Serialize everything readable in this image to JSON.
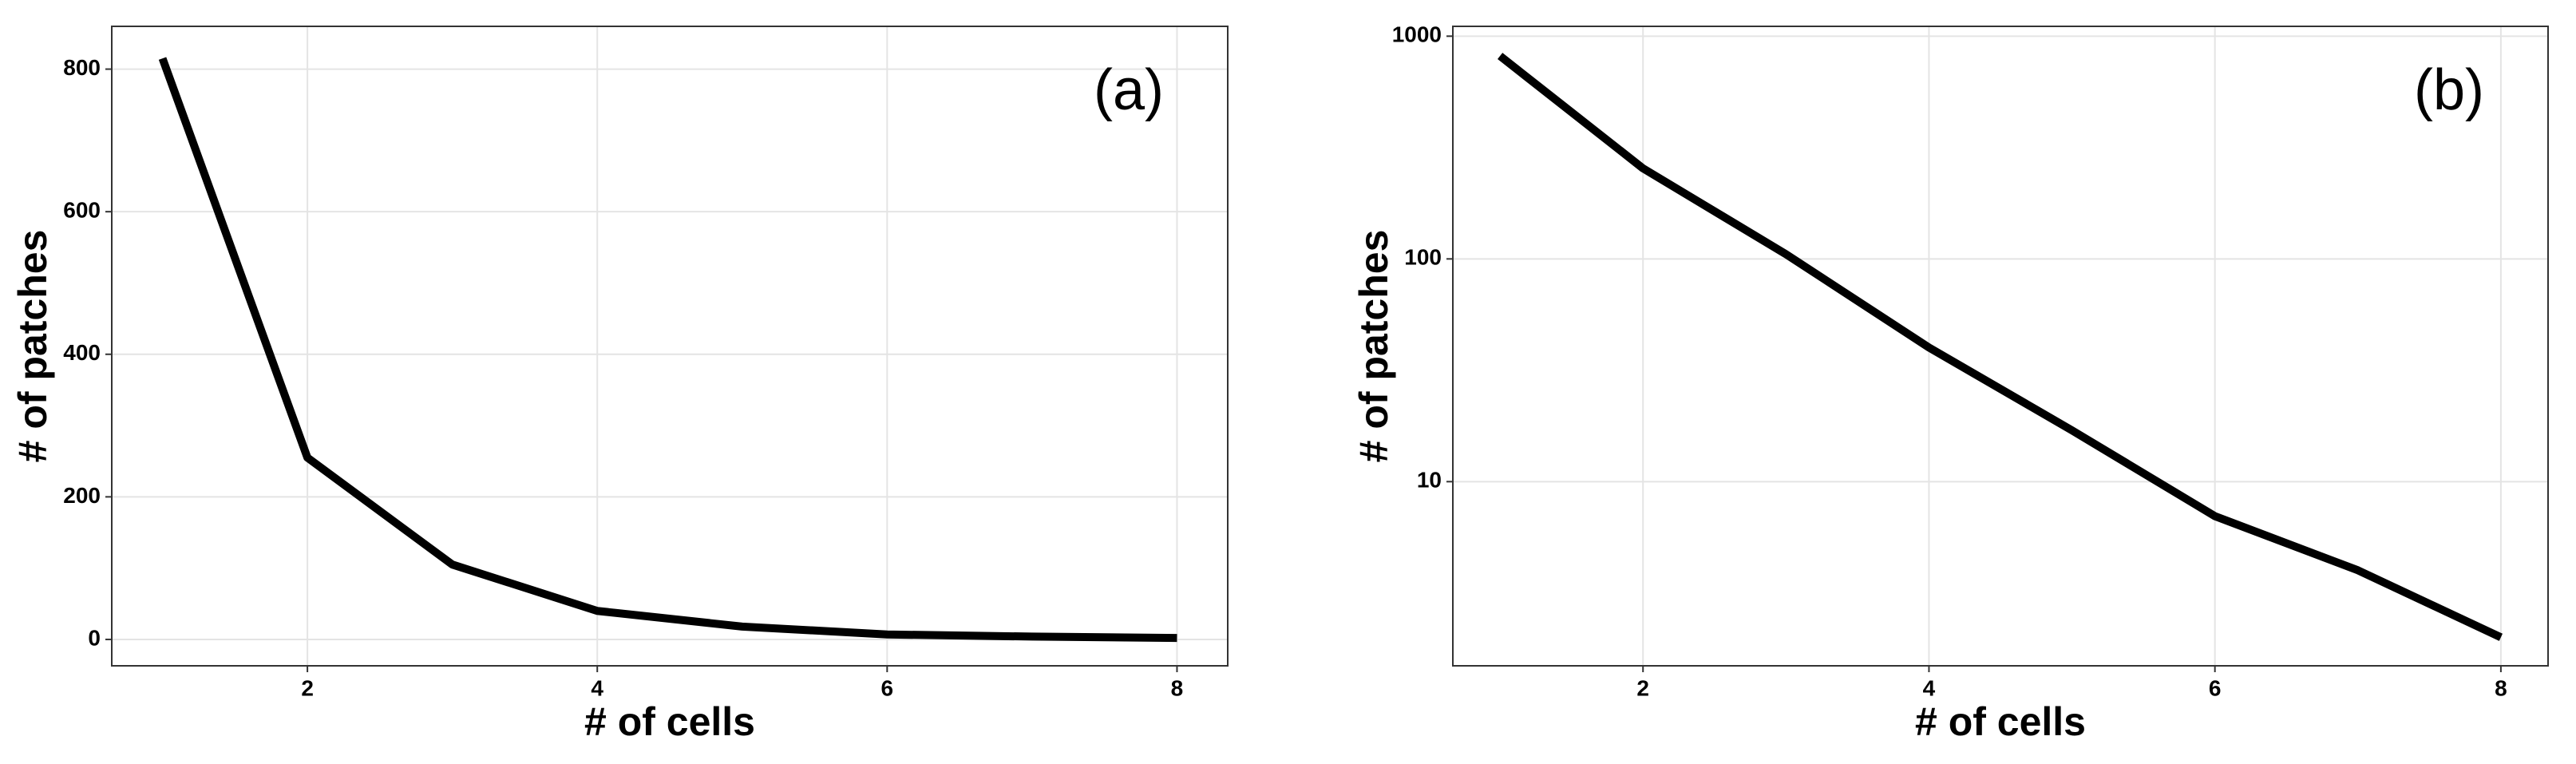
{
  "chart_data": [
    {
      "type": "line",
      "annotation": "(a)",
      "x_label": "# of cells",
      "y_label": "# of patches",
      "x": [
        1,
        2,
        3,
        4,
        5,
        6,
        7,
        8
      ],
      "series": [
        {
          "color": "#000000",
          "values": [
            815,
            255,
            105,
            40,
            18,
            7,
            4,
            2
          ]
        }
      ],
      "xlim": [
        0.65,
        8.35
      ],
      "xticks": [
        2,
        4,
        6,
        8
      ],
      "ylim": [
        -37,
        860
      ],
      "yticks": [
        0,
        200,
        400,
        600,
        800
      ],
      "log_y": false,
      "grid": true
    },
    {
      "type": "line",
      "annotation": "(b)",
      "x_label": "# of cells",
      "y_label": "# of patches",
      "x": [
        1,
        2,
        3,
        4,
        5,
        6,
        7,
        8
      ],
      "series": [
        {
          "color": "#000000",
          "values": [
            815,
            255,
            105,
            40,
            17,
            7,
            4,
            2
          ]
        }
      ],
      "xlim": [
        0.67,
        8.33
      ],
      "xticks": [
        2,
        4,
        6,
        8
      ],
      "ylim": [
        1.49,
        1107
      ],
      "yticks": [
        10,
        100,
        1000
      ],
      "log_y": true,
      "grid": true
    }
  ]
}
